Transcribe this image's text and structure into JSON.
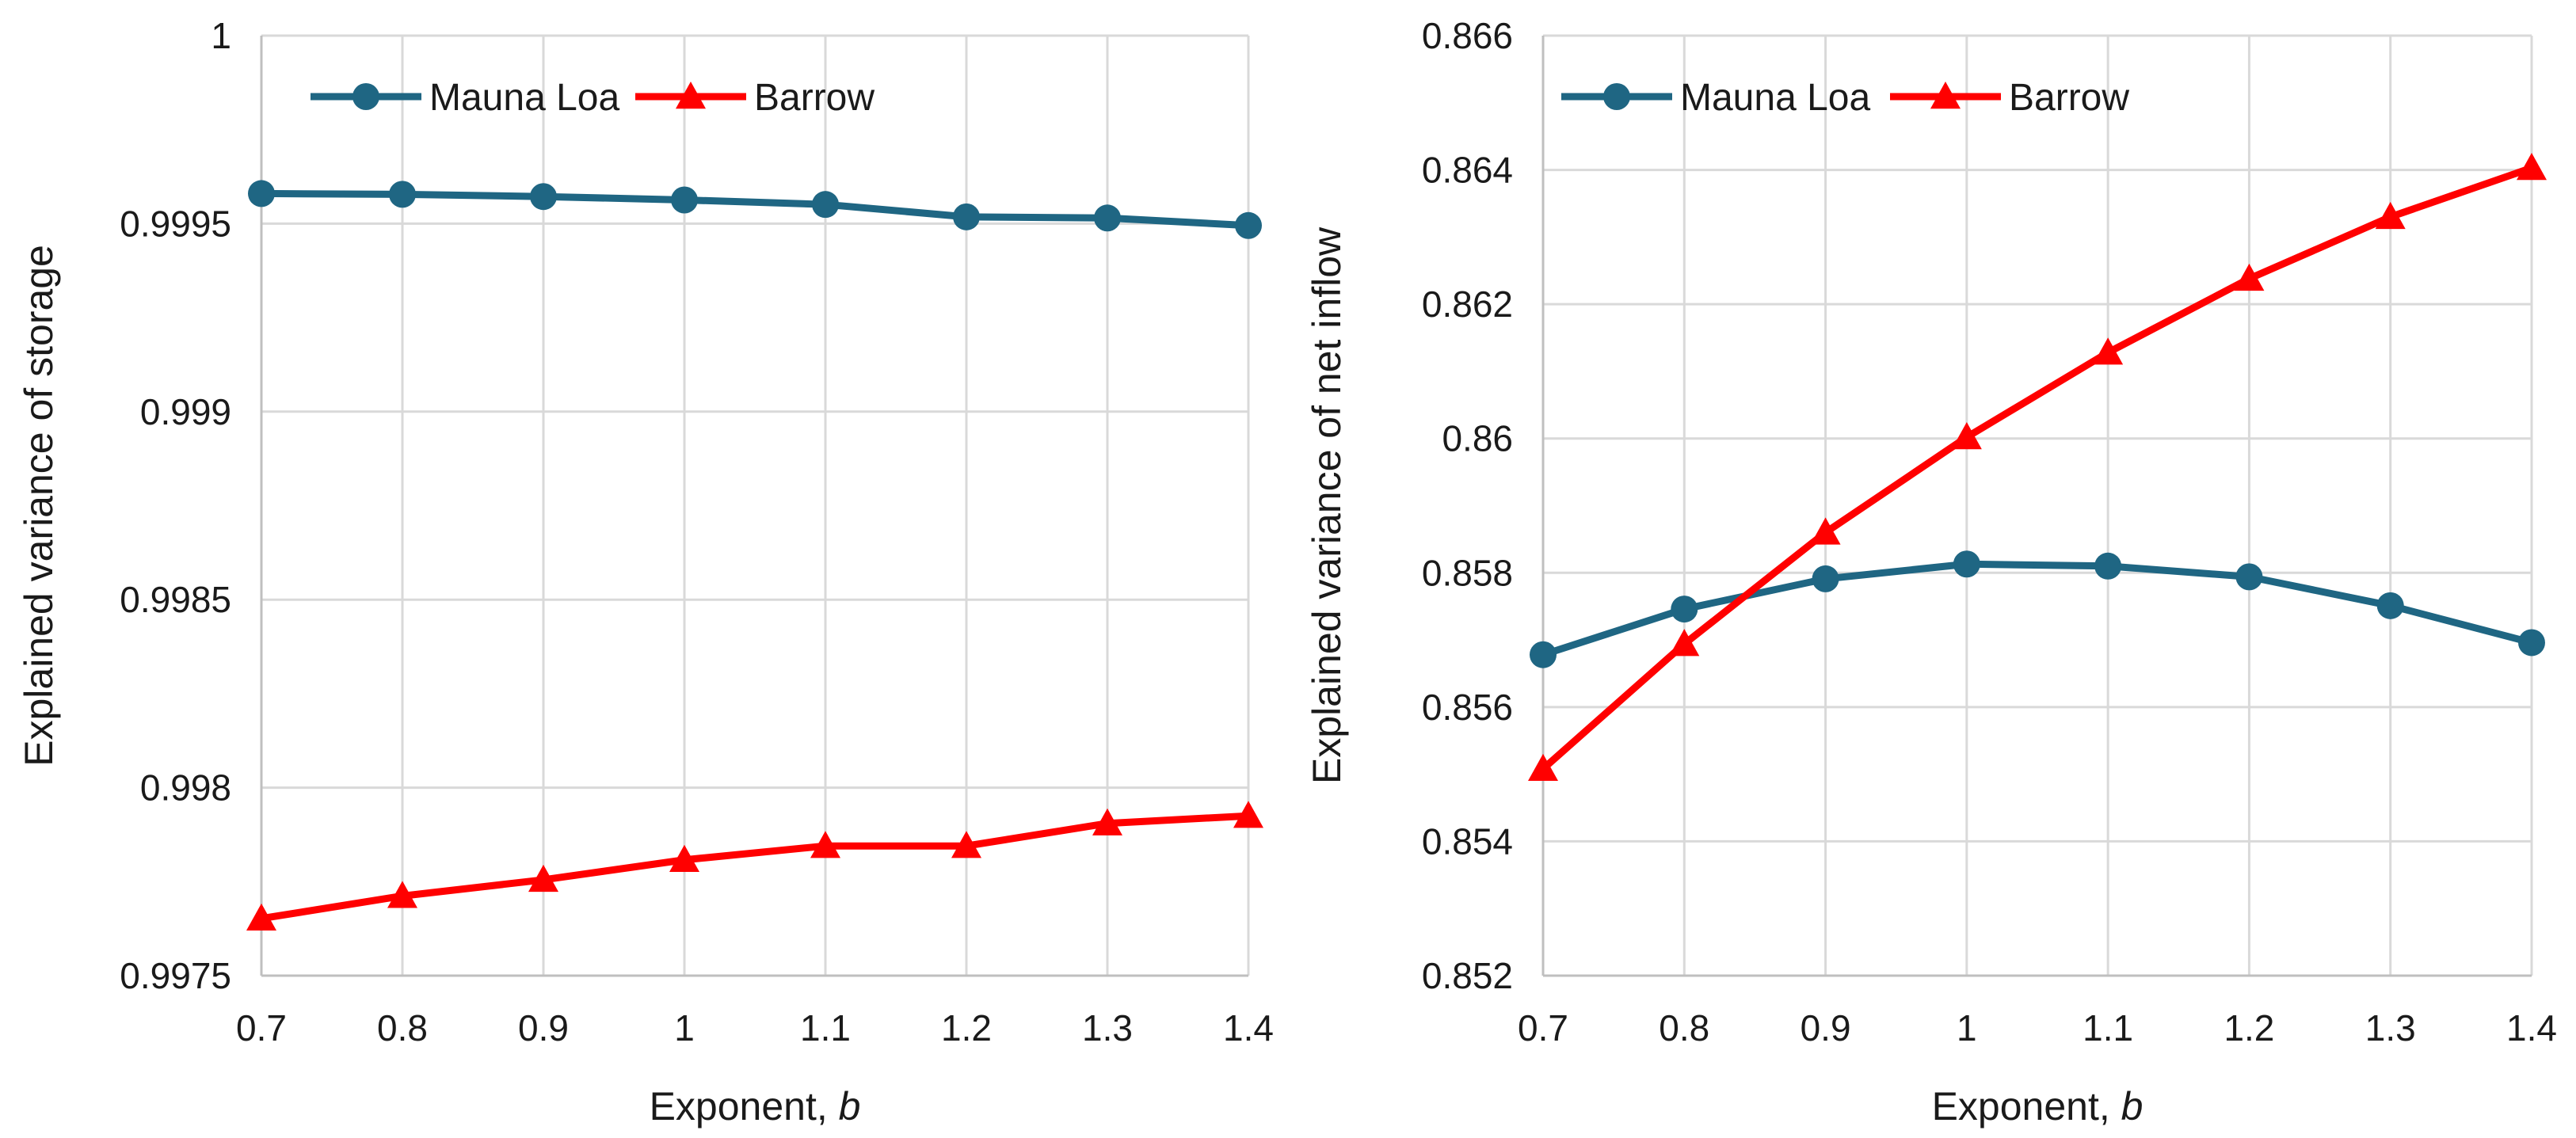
{
  "colors": {
    "mauna_loa": "#1F6683",
    "barrow": "#FF0000",
    "grid": "#D9D9D9",
    "axis": "#BFBFBF"
  },
  "chart_data": [
    {
      "type": "line",
      "title": "",
      "xlabel_prefix": "Exponent, ",
      "xlabel_symbol": "b",
      "ylabel": "Explained variance of storage",
      "x": [
        0.7,
        0.8,
        0.9,
        1.0,
        1.1,
        1.2,
        1.3,
        1.4
      ],
      "x_tick_labels": [
        "0.7",
        "0.8",
        "0.9",
        "1",
        "1.1",
        "1.2",
        "1.3",
        "1.4"
      ],
      "xlim": [
        0.7,
        1.4
      ],
      "ylim": [
        0.9975,
        1.0
      ],
      "y_ticks": [
        0.9975,
        0.998,
        0.9985,
        0.999,
        0.9995,
        1.0
      ],
      "y_tick_labels": [
        "0.9975",
        "0.998",
        "0.9985",
        "0.999",
        "0.9995",
        "1"
      ],
      "grid": true,
      "legend_position": "top-left",
      "series": [
        {
          "name": "Mauna Loa",
          "marker": "circle",
          "color": "#1F6683",
          "values": [
            0.99958,
            0.999578,
            0.999572,
            0.999563,
            0.999551,
            0.999518,
            0.999515,
            0.999495
          ]
        },
        {
          "name": "Barrow",
          "marker": "triangle",
          "color": "#FF0000",
          "values": [
            0.997652,
            0.997712,
            0.997755,
            0.997808,
            0.997845,
            0.997845,
            0.997905,
            0.997925
          ]
        }
      ]
    },
    {
      "type": "line",
      "title": "",
      "xlabel_prefix": "Exponent, ",
      "xlabel_symbol": "b",
      "ylabel": "Explained variance of net inflow",
      "x": [
        0.7,
        0.8,
        0.9,
        1.0,
        1.1,
        1.2,
        1.3,
        1.4
      ],
      "x_tick_labels": [
        "0.7",
        "0.8",
        "0.9",
        "1",
        "1.1",
        "1.2",
        "1.3",
        "1.4"
      ],
      "xlim": [
        0.7,
        1.4
      ],
      "ylim": [
        0.852,
        0.866
      ],
      "y_ticks": [
        0.852,
        0.854,
        0.856,
        0.858,
        0.86,
        0.862,
        0.864,
        0.866
      ],
      "y_tick_labels": [
        "0.852",
        "0.854",
        "0.856",
        "0.858",
        "0.86",
        "0.862",
        "0.864",
        "0.866"
      ],
      "grid": true,
      "legend_position": "top-left",
      "series": [
        {
          "name": "Mauna Loa",
          "marker": "circle",
          "color": "#1F6683",
          "values": [
            0.85678,
            0.85746,
            0.85791,
            0.85813,
            0.8581,
            0.85794,
            0.85751,
            0.85696
          ]
        },
        {
          "name": "Barrow",
          "marker": "triangle",
          "color": "#FF0000",
          "values": [
            0.85508,
            0.85694,
            0.8586,
            0.86002,
            0.86128,
            0.86238,
            0.8633,
            0.86403
          ]
        }
      ]
    }
  ]
}
